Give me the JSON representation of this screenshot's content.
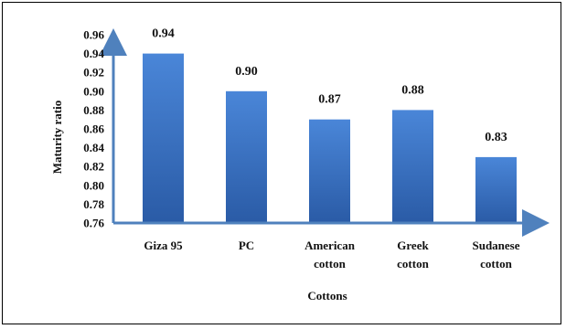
{
  "chart_data": {
    "type": "bar",
    "categories": [
      [
        "Giza 95"
      ],
      [
        "PC"
      ],
      [
        "American",
        "cotton"
      ],
      [
        "Greek",
        "cotton"
      ],
      [
        "Sudanese",
        "cotton"
      ]
    ],
    "values": [
      0.94,
      0.9,
      0.87,
      0.88,
      0.83
    ],
    "value_labels": [
      "0.94",
      "0.90",
      "0.87",
      "0.88",
      "0.83"
    ],
    "title": "",
    "xlabel": "Cottons",
    "ylabel": "Maturity ratio",
    "ylim": [
      0.76,
      0.96
    ],
    "yticks": [
      "0.76",
      "0.78",
      "0.80",
      "0.82",
      "0.84",
      "0.86",
      "0.88",
      "0.90",
      "0.92",
      "0.94",
      "0.96"
    ],
    "grid": false,
    "legend": "none",
    "colors": {
      "bar_top": "#4A86D8",
      "bar_bottom": "#2A5BA6",
      "axis": "#4F81BD"
    }
  }
}
